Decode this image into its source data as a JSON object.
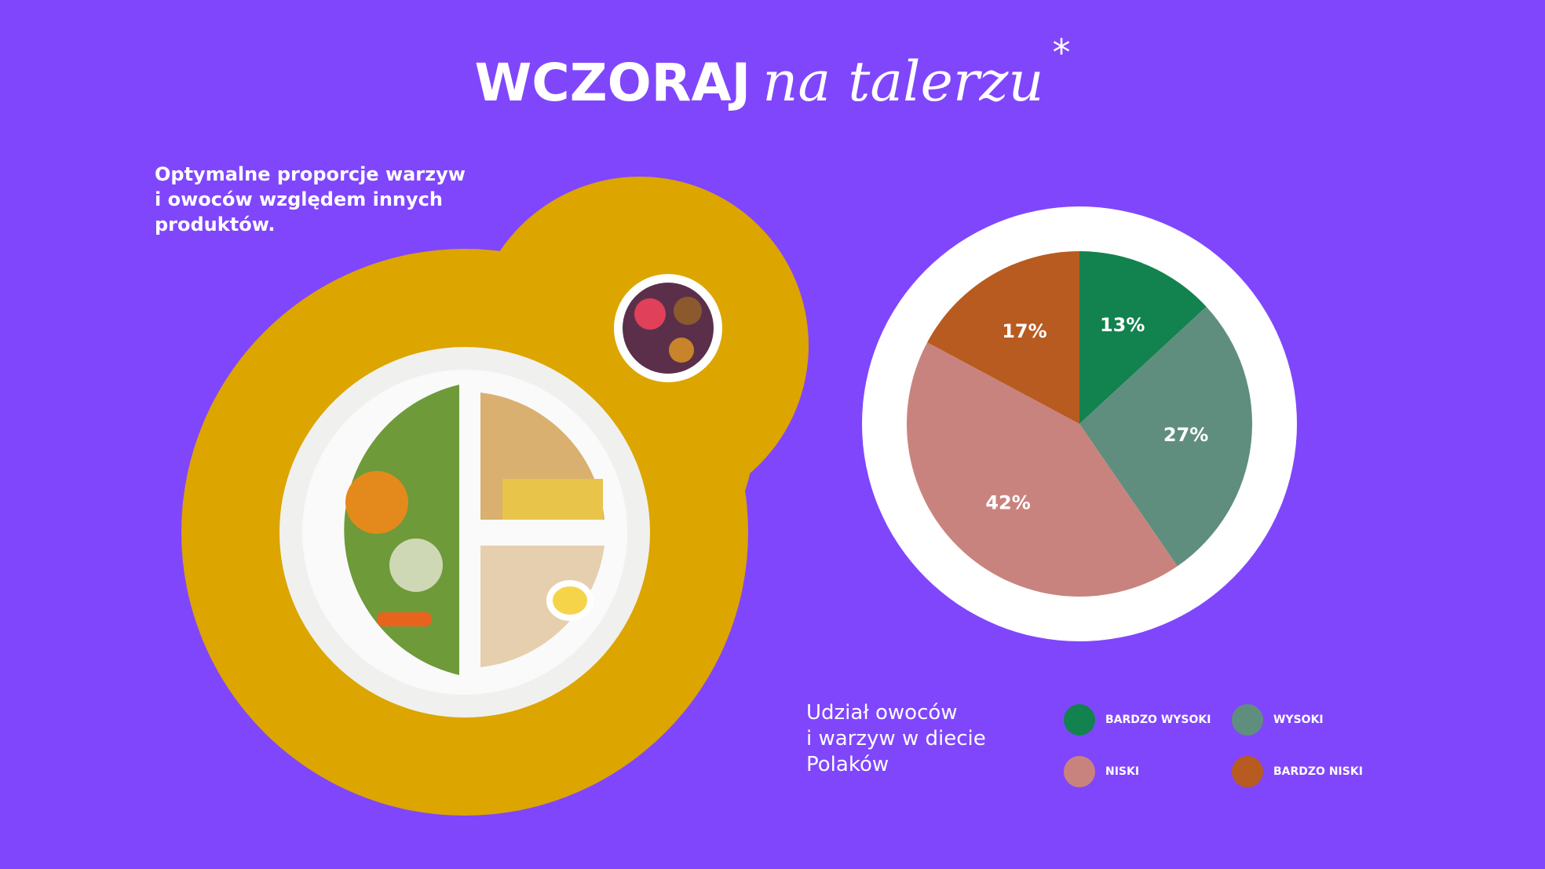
{
  "title": {
    "bold": "WCZORAJ",
    "script": "na talerzu",
    "mark": "*"
  },
  "intro": {
    "lines": [
      "Optymalne proporcje warzyw",
      "i owoców względem innych",
      "produktów."
    ]
  },
  "chart_data": {
    "type": "pie",
    "caption": [
      "Udział owoców",
      "i warzyw w diecie",
      "Polaków"
    ],
    "categories": [
      "BARDZO WYSOKI",
      "WYSOKI",
      "NISKI",
      "BARDZO NISKI"
    ],
    "values": [
      13,
      27,
      42,
      17
    ],
    "value_labels": [
      "13%",
      "27%",
      "42%",
      "17%"
    ],
    "colors": [
      "#12824f",
      "#5f8e7e",
      "#c9837e",
      "#b85b20"
    ],
    "start_angle": 0,
    "direction": "clockwise"
  }
}
